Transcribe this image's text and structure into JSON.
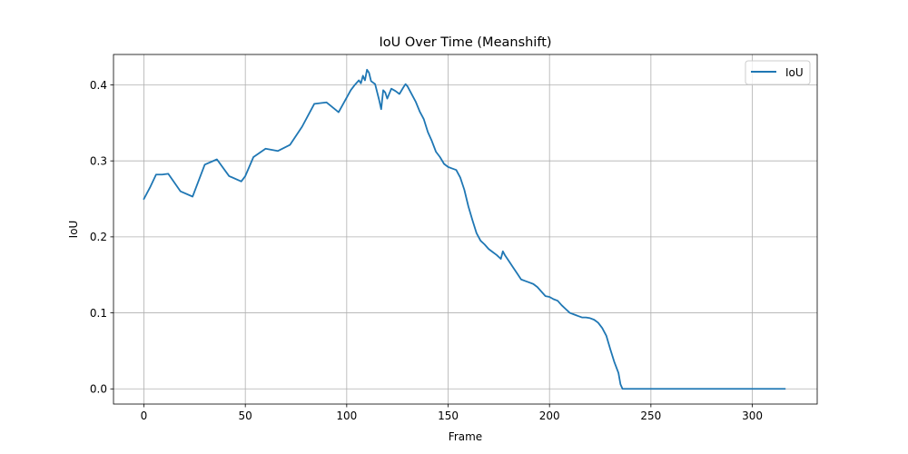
{
  "chart_data": {
    "type": "line",
    "title": "IoU Over Time (Meanshift)",
    "xlabel": "Frame",
    "ylabel": "IoU",
    "xlim": [
      -15,
      332
    ],
    "ylim": [
      -0.02,
      0.44
    ],
    "xticks": [
      0,
      50,
      100,
      150,
      200,
      250,
      300
    ],
    "yticks": [
      0.0,
      0.1,
      0.2,
      0.3,
      0.4
    ],
    "xtick_labels": [
      "0",
      "50",
      "100",
      "150",
      "200",
      "250",
      "300"
    ],
    "ytick_labels": [
      "0.0",
      "0.1",
      "0.2",
      "0.3",
      "0.4"
    ],
    "grid": true,
    "legend_position": "top-right",
    "series": [
      {
        "name": "IoU",
        "color": "#1f77b4",
        "x": [
          0,
          3,
          6,
          9,
          12,
          18,
          24,
          30,
          36,
          42,
          48,
          50,
          54,
          60,
          66,
          72,
          78,
          84,
          90,
          96,
          102,
          104,
          106,
          107,
          108,
          109,
          110,
          111,
          112,
          114,
          116,
          117,
          118,
          119,
          120,
          122,
          124,
          126,
          128,
          129,
          130,
          132,
          134,
          136,
          138,
          140,
          142,
          144,
          146,
          148,
          150,
          152,
          154,
          156,
          158,
          160,
          162,
          164,
          166,
          168,
          170,
          172,
          174,
          176,
          177,
          178,
          180,
          182,
          184,
          186,
          188,
          190,
          192,
          194,
          196,
          198,
          200,
          202,
          204,
          206,
          208,
          210,
          212,
          214,
          216,
          218,
          220,
          222,
          224,
          226,
          228,
          230,
          232,
          234,
          235,
          236,
          240,
          250,
          260,
          270,
          280,
          290,
          300,
          310,
          316
        ],
        "y": [
          0.25,
          0.265,
          0.282,
          0.282,
          0.283,
          0.26,
          0.253,
          0.295,
          0.302,
          0.28,
          0.273,
          0.28,
          0.305,
          0.316,
          0.313,
          0.321,
          0.345,
          0.375,
          0.377,
          0.364,
          0.393,
          0.4,
          0.406,
          0.402,
          0.412,
          0.406,
          0.42,
          0.416,
          0.405,
          0.401,
          0.38,
          0.368,
          0.393,
          0.39,
          0.382,
          0.395,
          0.392,
          0.388,
          0.397,
          0.401,
          0.398,
          0.388,
          0.378,
          0.365,
          0.355,
          0.338,
          0.326,
          0.312,
          0.305,
          0.296,
          0.292,
          0.29,
          0.288,
          0.278,
          0.262,
          0.24,
          0.222,
          0.205,
          0.195,
          0.19,
          0.184,
          0.18,
          0.176,
          0.171,
          0.181,
          0.176,
          0.168,
          0.16,
          0.152,
          0.144,
          0.142,
          0.14,
          0.138,
          0.134,
          0.128,
          0.122,
          0.121,
          0.118,
          0.116,
          0.11,
          0.105,
          0.1,
          0.098,
          0.096,
          0.094,
          0.094,
          0.093,
          0.091,
          0.087,
          0.08,
          0.07,
          0.052,
          0.035,
          0.021,
          0.006,
          0.0,
          0.0,
          0.0,
          0.0,
          0.0,
          0.0,
          0.0,
          0.0,
          0.0,
          0.0
        ]
      }
    ]
  }
}
